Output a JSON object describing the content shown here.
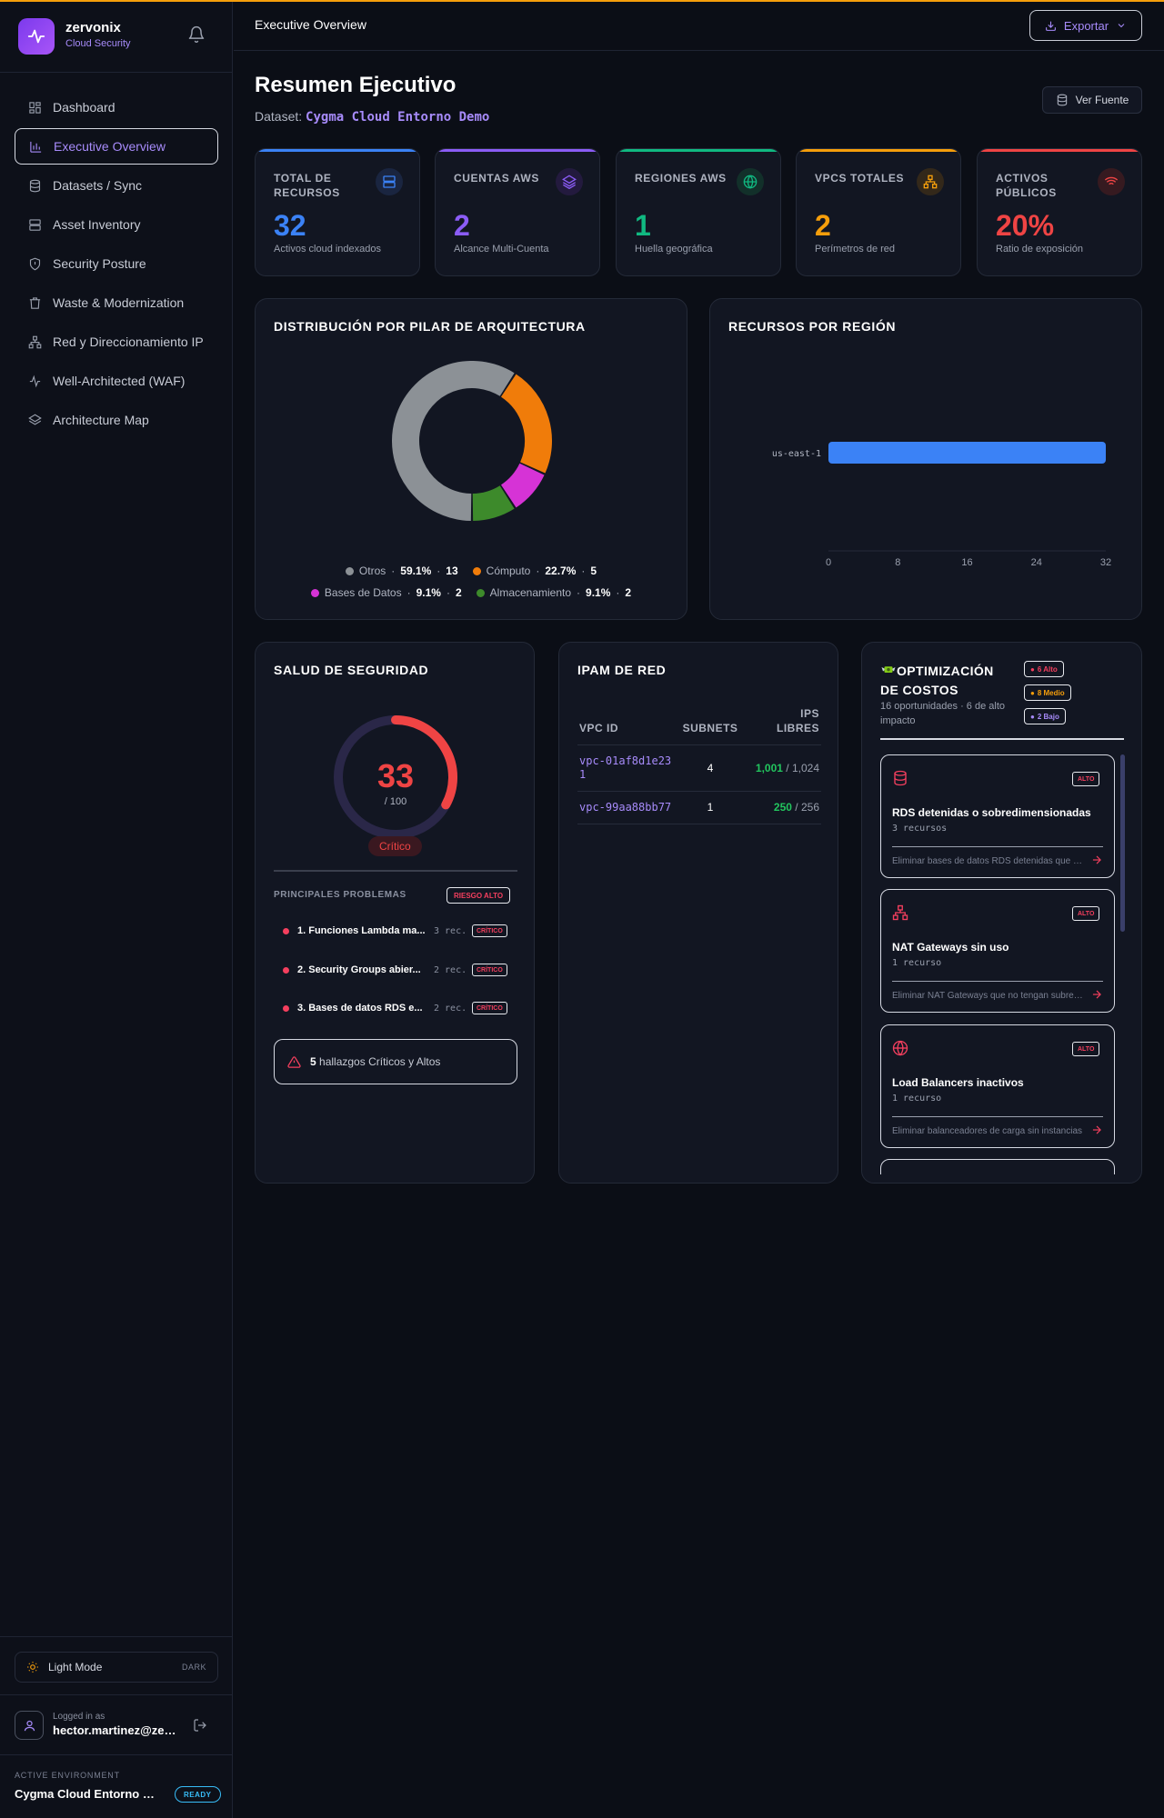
{
  "brand": {
    "name": "zervonix",
    "subtitle": "Cloud Security"
  },
  "nav": [
    {
      "label": "Dashboard",
      "icon": "grid-icon",
      "active": false
    },
    {
      "label": "Executive Overview",
      "icon": "bar-chart-icon",
      "active": true
    },
    {
      "label": "Datasets / Sync",
      "icon": "database-icon",
      "active": false
    },
    {
      "label": "Asset Inventory",
      "icon": "server-icon",
      "active": false
    },
    {
      "label": "Security Posture",
      "icon": "shield-icon",
      "active": false
    },
    {
      "label": "Waste & Modernization",
      "icon": "trash-icon",
      "active": false
    },
    {
      "label": "Red y Direccionamiento IP",
      "icon": "network-icon",
      "active": false
    },
    {
      "label": "Well-Architected (WAF)",
      "icon": "activity-icon",
      "active": false
    },
    {
      "label": "Architecture Map",
      "icon": "layers-icon",
      "active": false
    }
  ],
  "theme_toggle": {
    "label": "Light Mode",
    "alt": "DARK"
  },
  "user": {
    "label": "Logged in as",
    "email": "hector.martinez@zervonix.com"
  },
  "environment": {
    "label": "ACTIVE ENVIRONMENT",
    "name": "Cygma Cloud Entorno Demo",
    "status": "READY"
  },
  "header": {
    "title": "Executive Overview",
    "export_label": "Exportar"
  },
  "page": {
    "title": "Resumen Ejecutivo",
    "dataset_label": "Dataset:",
    "dataset_name": "Cygma Cloud Entorno Demo",
    "source_button": "Ver Fuente"
  },
  "kpis": [
    {
      "label": "TOTAL DE RECURSOS",
      "value": "32",
      "sub": "Activos cloud indexados",
      "color": "#3b82f6",
      "icon": "server-icon"
    },
    {
      "label": "CUENTAS AWS",
      "value": "2",
      "sub": "Alcance Multi-Cuenta",
      "color": "#8b5cf6",
      "icon": "layers-icon"
    },
    {
      "label": "REGIONES AWS",
      "value": "1",
      "sub": "Huella geográfica",
      "color": "#10b981",
      "icon": "globe-icon"
    },
    {
      "label": "VPCS TOTALES",
      "value": "2",
      "sub": "Perímetros de red",
      "color": "#f59e0b",
      "icon": "network-icon"
    },
    {
      "label": "ACTIVOS PÚBLICOS",
      "value": "20%",
      "sub": "Ratio de exposición",
      "color": "#ef4444",
      "icon": "wifi-icon"
    }
  ],
  "pillar_card": {
    "title": "DISTRIBUCIÓN POR PILAR DE ARQUITECTURA"
  },
  "region_card": {
    "title": "RECURSOS POR REGIÓN"
  },
  "chart_data": [
    {
      "type": "pie",
      "title": "DISTRIBUCIÓN POR PILAR DE ARQUITECTURA",
      "donut": true,
      "slices": [
        {
          "name": "Otros",
          "percent": "59.1%",
          "count": "13",
          "value": 13,
          "color": "#8c9196"
        },
        {
          "name": "Cómputo",
          "percent": "22.7%",
          "count": "5",
          "value": 5,
          "color": "#f07c0a"
        },
        {
          "name": "Bases de Datos",
          "percent": "9.1%",
          "count": "2",
          "value": 2,
          "color": "#d633d6"
        },
        {
          "name": "Almacenamiento",
          "percent": "9.1%",
          "count": "2",
          "value": 2,
          "color": "#3d8a2b"
        }
      ],
      "legend_position": "bottom"
    },
    {
      "type": "bar",
      "orientation": "horizontal",
      "title": "RECURSOS POR REGIÓN",
      "categories": [
        "us-east-1"
      ],
      "values": [
        32
      ],
      "xlim": [
        0,
        32
      ],
      "xticks": [
        "0",
        "8",
        "16",
        "24",
        "32"
      ],
      "color": "#3b82f6"
    }
  ],
  "security": {
    "title": "SALUD DE SEGURIDAD",
    "score": "33",
    "max": "/ 100",
    "score_fraction": 0.33,
    "status": "Crítico",
    "issues_title": "PRINCIPALES PROBLEMAS",
    "risk_badge": "RIESGO ALTO",
    "issues": [
      {
        "text": "1. Funciones Lambda ma...",
        "count": "3 rec.",
        "badge": "CRÍTICO"
      },
      {
        "text": "2. Security Groups abier...",
        "count": "2 rec.",
        "badge": "CRÍTICO"
      },
      {
        "text": "3. Bases de datos RDS e...",
        "count": "2 rec.",
        "badge": "CRÍTICO"
      }
    ],
    "findings_count": "5",
    "findings_text": "hallazgos Críticos y Altos"
  },
  "ipam": {
    "title": "IPAM DE RED",
    "columns": [
      "VPC ID",
      "SUBNETS",
      "IPS LIBRES"
    ],
    "rows": [
      {
        "vpc": "vpc-01af8d1e231",
        "subnets": "4",
        "free": "1,001",
        "total": "1,024"
      },
      {
        "vpc": "vpc-99aa88bb77",
        "subnets": "1",
        "free": "250",
        "total": "256"
      }
    ]
  },
  "cost": {
    "icon": "money-wings-icon",
    "title": "OPTIMIZACIÓN DE COSTOS",
    "subtitle": "16 oportunidades · 6 de alto impacto",
    "badges": [
      {
        "label": "6 Alto",
        "color": "#f43f5e"
      },
      {
        "label": "8 Medio",
        "color": "#f59e0b"
      },
      {
        "label": "2 Bajo",
        "color": "#a78bfa"
      }
    ],
    "opportunities": [
      {
        "icon": "database-icon",
        "badge": "ALTO",
        "title": "RDS detenidas o sobredimensionadas",
        "count": "3 recursos",
        "desc": "Eliminar bases de datos RDS detenidas que no se usen"
      },
      {
        "icon": "network-icon",
        "badge": "ALTO",
        "title": "NAT Gateways sin uso",
        "count": "1 recurso",
        "desc": "Eliminar NAT Gateways que no tengan subredes asociadas"
      },
      {
        "icon": "globe-icon",
        "badge": "ALTO",
        "title": "Load Balancers inactivos",
        "count": "1 recurso",
        "desc": "Eliminar balanceadores de carga sin instancias"
      }
    ]
  }
}
